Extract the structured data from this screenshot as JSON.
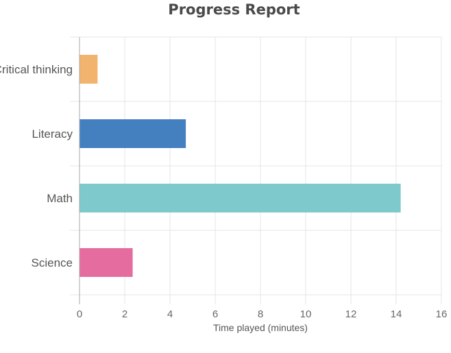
{
  "chart_data": {
    "type": "bar",
    "orientation": "horizontal",
    "title": "Progress Report",
    "xlabel": "Time played (minutes)",
    "ylabel": "",
    "xlim": [
      0,
      16
    ],
    "x_ticks": [
      0,
      2,
      4,
      6,
      8,
      10,
      12,
      14,
      16
    ],
    "grid": true,
    "categories": [
      "Critical thinking",
      "Literacy",
      "Math",
      "Science"
    ],
    "values": [
      0.8,
      4.7,
      14.2,
      2.35
    ],
    "colors": [
      "#f2b36f",
      "#4480c0",
      "#7ec9cb",
      "#e46c9e"
    ]
  }
}
